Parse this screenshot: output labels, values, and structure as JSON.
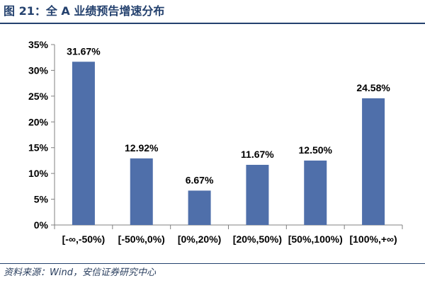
{
  "figure": {
    "title": "图 21：全 A 业绩预告增速分布",
    "source": "资料来源：Wind，安信证券研究中心"
  },
  "colors": {
    "title": "#24416e",
    "bar": "#4f6faa",
    "axis": "#808080"
  },
  "chart_data": {
    "type": "bar",
    "title": "",
    "xlabel": "",
    "ylabel": "",
    "categories": [
      "[-∞,-50%)",
      "[-50%,0%)",
      "[0%,20%)",
      "[20%,50%)",
      "[50%,100%)",
      "[100%,+∞)"
    ],
    "values": [
      31.67,
      12.92,
      6.67,
      11.67,
      12.5,
      24.58
    ],
    "data_labels": [
      "31.67%",
      "12.92%",
      "6.67%",
      "11.67%",
      "12.50%",
      "24.58%"
    ],
    "y_ticks": [
      "0%",
      "5%",
      "10%",
      "15%",
      "20%",
      "25%",
      "30%",
      "35%"
    ],
    "ylim": [
      0,
      35
    ],
    "grid": false,
    "legend": "none"
  }
}
